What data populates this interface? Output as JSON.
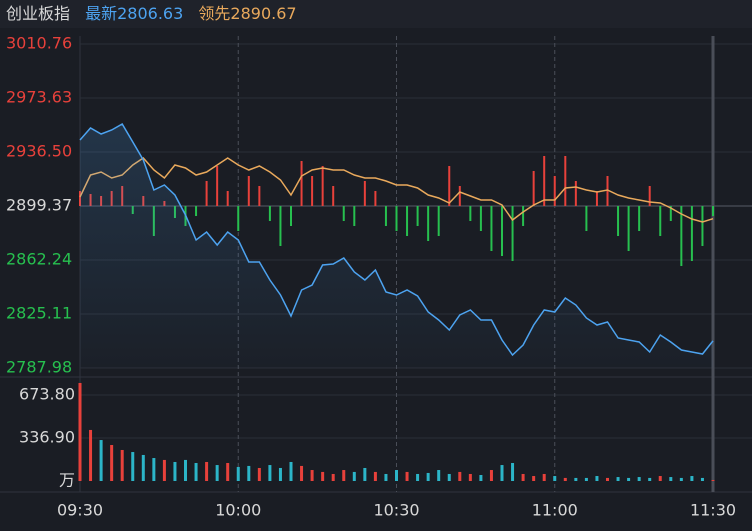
{
  "chart_data": {
    "type": "line",
    "title": "创业板指",
    "categories": [
      "09:30",
      null,
      null,
      null,
      null,
      null,
      null,
      null,
      null,
      null,
      null,
      null,
      null,
      null,
      null,
      "10:00",
      null,
      null,
      null,
      null,
      null,
      null,
      null,
      null,
      null,
      null,
      null,
      null,
      null,
      null,
      "10:30",
      null,
      null,
      null,
      null,
      null,
      null,
      null,
      null,
      null,
      null,
      null,
      null,
      null,
      null,
      "11:00",
      null,
      null,
      null,
      null,
      null,
      null,
      null,
      null,
      null,
      null,
      null,
      null,
      null,
      null,
      "11:30"
    ],
    "series": [
      {
        "name": "最新",
        "color": "#4da3f0",
        "values": [
          2944.75,
          2953.0,
          2948.88,
          2951.63,
          2955.75,
          2943.38,
          2931.0,
          2910.37,
          2913.81,
          2906.93,
          2893.18,
          2875.99,
          2881.49,
          2872.55,
          2881.49,
          2875.99,
          2860.86,
          2860.86,
          2848.49,
          2838.17,
          2823.73,
          2841.61,
          2845.05,
          2858.8,
          2859.49,
          2863.61,
          2853.99,
          2848.49,
          2855.36,
          2840.24,
          2838.17,
          2841.61,
          2837.49,
          2826.48,
          2820.98,
          2814.11,
          2824.42,
          2827.86,
          2820.98,
          2820.98,
          2807.23,
          2796.92,
          2803.79,
          2817.55,
          2827.86,
          2826.48,
          2836.11,
          2831.3,
          2822.36,
          2817.55,
          2819.61,
          2808.61,
          2807.23,
          2805.86,
          2798.98,
          2810.67,
          2805.86,
          2800.36,
          2798.98,
          2797.61,
          2806.63
        ]
      },
      {
        "name": "领先",
        "color": "#e9a95c",
        "values": [
          2905.56,
          2920.69,
          2922.75,
          2918.62,
          2920.69,
          2927.56,
          2932.37,
          2924.12,
          2918.62,
          2927.56,
          2925.5,
          2920.69,
          2922.75,
          2927.56,
          2932.37,
          2927.56,
          2924.12,
          2926.87,
          2922.75,
          2917.25,
          2906.93,
          2920.0,
          2924.12,
          2925.5,
          2924.12,
          2924.12,
          2920.69,
          2918.62,
          2918.62,
          2916.56,
          2913.81,
          2913.81,
          2911.75,
          2906.93,
          2904.87,
          2901.43,
          2909.0,
          2906.25,
          2903.5,
          2903.5,
          2900.06,
          2889.74,
          2895.24,
          2900.06,
          2903.5,
          2903.5,
          2911.75,
          2912.43,
          2910.37,
          2909.0,
          2910.37,
          2906.93,
          2904.87,
          2903.5,
          2902.12,
          2901.43,
          2897.99,
          2893.87,
          2890.43,
          2888.37,
          2890.67
        ]
      }
    ],
    "prev_close": 2899.37,
    "up_color": "#e8413b",
    "down_color": "#27c04f",
    "base_color": "#d8d8d8",
    "ylim": [
      2787.98,
      3010.76
    ],
    "yticks": [
      3010.76,
      2973.63,
      {
        "value": 2936.5,
        "label": "2936.50"
      },
      2899.37,
      2862.24,
      2825.11,
      2787.98
    ],
    "strength": [
      10.31,
      8.25,
      6.88,
      10.31,
      13.75,
      -5.5,
      6.88,
      -20.63,
      3.44,
      -8.25,
      -13.75,
      -6.88,
      17.19,
      27.5,
      10.31,
      -17.19,
      20.63,
      13.75,
      -10.31,
      -27.5,
      -13.75,
      30.94,
      20.63,
      27.5,
      13.75,
      -10.31,
      -13.75,
      17.19,
      10.31,
      -13.75,
      -17.19,
      -20.63,
      -13.75,
      -24.07,
      -20.63,
      27.5,
      13.75,
      -10.31,
      -17.19,
      -30.94,
      -34.38,
      -37.82,
      -13.75,
      24.07,
      34.38,
      20.63,
      34.38,
      17.19,
      -17.19,
      10.31,
      20.63,
      -20.63,
      -30.94,
      -17.19,
      13.75,
      -20.63,
      -10.31,
      -41.26,
      -37.82,
      -27.5,
      -6.88
    ],
    "volume": {
      "down_color": "#2cb5c8",
      "ylim": [
        0,
        775.7
      ],
      "yticks": [
        {
          "value": 673.8,
          "label": "673.80"
        },
        {
          "value": 336.9,
          "label": "336.90"
        },
        {
          "value": 0,
          "label": "万"
        }
      ],
      "values": [
        768,
        400,
        321,
        282,
        243,
        227,
        204,
        180,
        165,
        149,
        165,
        141,
        149,
        125,
        141,
        110,
        118,
        102,
        125,
        102,
        149,
        118,
        86,
        71,
        55,
        86,
        71,
        102,
        71,
        55,
        86,
        71,
        55,
        63,
        86,
        55,
        71,
        55,
        47,
        86,
        125,
        141,
        55,
        39,
        55,
        39,
        24,
        24,
        24,
        39,
        24,
        31,
        24,
        31,
        24,
        39,
        31,
        24,
        39,
        24,
        8
      ]
    }
  }
}
